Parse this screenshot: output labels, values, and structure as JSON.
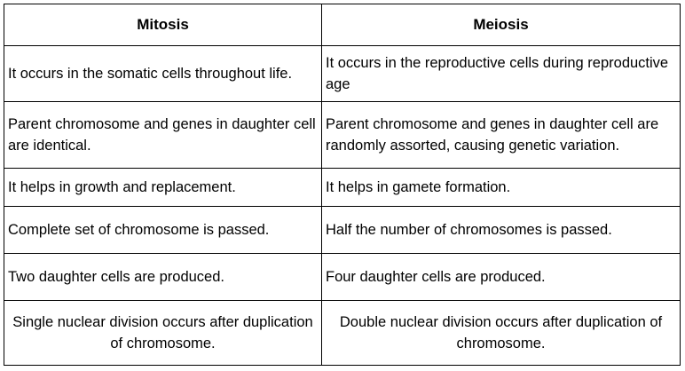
{
  "table": {
    "headers": [
      "Mitosis",
      "Meiosis"
    ],
    "rows": [
      [
        "It occurs in the somatic cells throughout life.",
        "It occurs in the reproductive cells during reproductive age"
      ],
      [
        "Parent chromosome and genes in daughter cell are identical.",
        "Parent chromosome and genes in daughter cell are randomly assorted, causing genetic variation."
      ],
      [
        "It helps in growth and replacement.",
        "It helps in gamete formation."
      ],
      [
        "Complete set of chromosome is passed.",
        "Half the number of chromosomes is passed."
      ],
      [
        "Two daughter cells are produced.",
        "Four daughter cells are produced."
      ],
      [
        "Single nuclear division occurs after duplication of chromosome.",
        "Double nuclear division occurs after duplication of chromosome."
      ]
    ]
  }
}
